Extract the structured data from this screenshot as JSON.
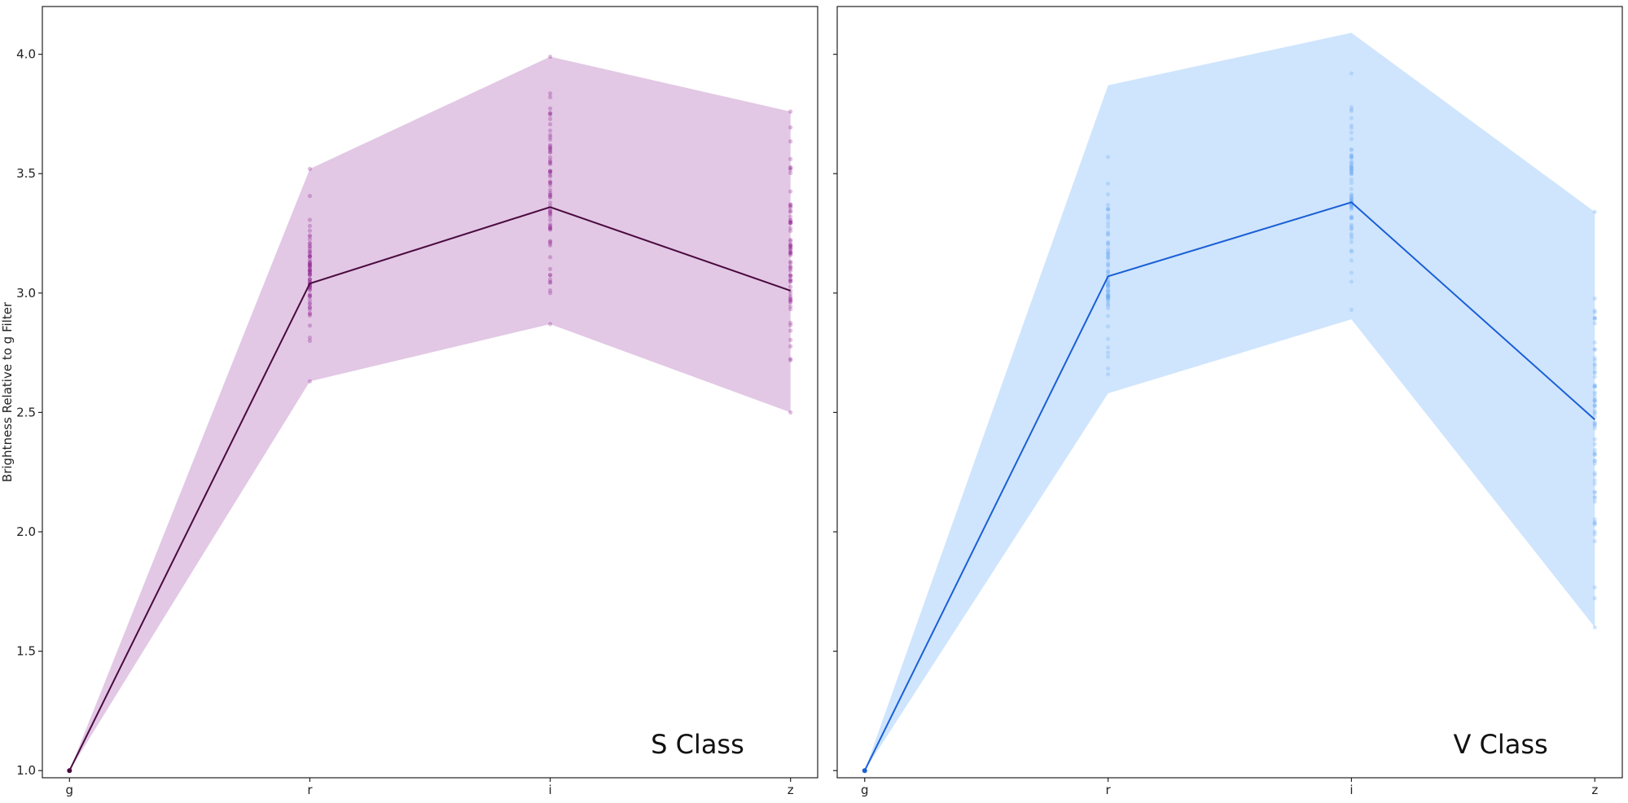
{
  "chart_data": {
    "type": "line",
    "ylabel": "Brightness Relative to g Filter",
    "ylim": [
      0.97,
      4.2
    ],
    "yticks": [
      1.0,
      1.5,
      2.0,
      2.5,
      3.0,
      3.5,
      4.0
    ],
    "ytick_labels": [
      "1.0",
      "1.5",
      "2.0",
      "2.5",
      "3.0",
      "3.5",
      "4.0"
    ],
    "categories": [
      "g",
      "r",
      "i",
      "z"
    ],
    "shared_y": true,
    "grid": false,
    "panels": [
      {
        "title": "S Class",
        "line_color": "#4a0a3f",
        "band_color": "#e2c8e5",
        "point_color": "#8b1a8b",
        "mean": [
          1.0,
          3.04,
          3.36,
          3.01
        ],
        "band_min": [
          1.0,
          2.63,
          2.87,
          2.5
        ],
        "band_max": [
          1.0,
          3.52,
          3.99,
          3.76
        ],
        "point_ranges": [
          [
            1.0,
            1.0
          ],
          [
            2.63,
            3.52
          ],
          [
            2.87,
            3.99
          ],
          [
            2.5,
            3.76
          ]
        ]
      },
      {
        "title": "V Class",
        "line_color": "#1a5fd6",
        "band_color": "#cfe5fd",
        "point_color": "#6aaaf5",
        "mean": [
          1.0,
          3.07,
          3.38,
          2.47
        ],
        "band_min": [
          1.0,
          2.58,
          2.89,
          1.6
        ],
        "band_max": [
          1.0,
          3.87,
          4.09,
          3.34
        ],
        "point_ranges": [
          [
            1.0,
            1.0
          ],
          [
            2.66,
            3.57
          ],
          [
            2.93,
            3.92
          ],
          [
            1.6,
            3.34
          ]
        ]
      }
    ]
  }
}
